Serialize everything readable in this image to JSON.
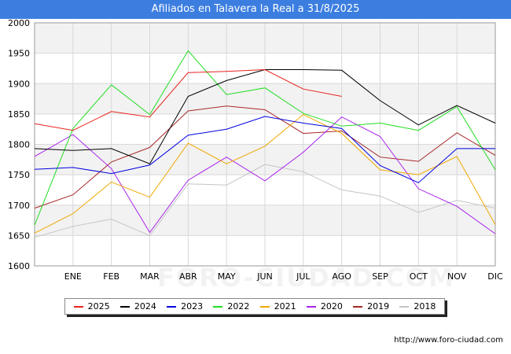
{
  "chart_data": {
    "type": "line",
    "title": "Afiliados en Talavera la Real a 31/8/2025",
    "categories": [
      "",
      "ENE",
      "FEB",
      "MAR",
      "ABR",
      "MAY",
      "JUN",
      "JUL",
      "AGO",
      "SEP",
      "OCT",
      "NOV",
      "DIC"
    ],
    "ylim": [
      1600,
      2000
    ],
    "yticks": [
      1600,
      1650,
      1700,
      1750,
      1800,
      1850,
      1900,
      1950,
      2000
    ],
    "grid": true,
    "legend_position": "bottom",
    "series": [
      {
        "name": "2025",
        "color": "#e8221c",
        "values": [
          1834,
          1823,
          1854,
          1845,
          1918,
          1920,
          1923,
          1891,
          1879,
          null,
          null,
          null,
          null
        ]
      },
      {
        "name": "2024",
        "color": "#000000",
        "values": [
          1793,
          1790,
          1793,
          1768,
          1879,
          1905,
          1923,
          1923,
          1922,
          1872,
          1832,
          1864,
          1835
        ]
      },
      {
        "name": "2023",
        "color": "#0000e0",
        "values": [
          1759,
          1762,
          1752,
          1766,
          1815,
          1825,
          1846,
          1835,
          1826,
          1765,
          1737,
          1793,
          1793
        ]
      },
      {
        "name": "2022",
        "color": "#22dd22",
        "values": [
          1667,
          1826,
          1898,
          1849,
          1954,
          1882,
          1893,
          1851,
          1830,
          1835,
          1823,
          1862,
          1758
        ]
      },
      {
        "name": "2021",
        "color": "#f0a800",
        "values": [
          1654,
          1686,
          1738,
          1713,
          1802,
          1768,
          1797,
          1849,
          1818,
          1758,
          1750,
          1780,
          1668
        ]
      },
      {
        "name": "2020",
        "color": "#aa22ee",
        "values": [
          1780,
          1816,
          1760,
          1655,
          1741,
          1779,
          1740,
          1787,
          1845,
          1813,
          1727,
          1698,
          1653
        ]
      },
      {
        "name": "2019",
        "color": "#a82828",
        "values": [
          1695,
          1717,
          1771,
          1795,
          1855,
          1863,
          1857,
          1818,
          1822,
          1779,
          1772,
          1819,
          1782
        ]
      },
      {
        "name": "2018",
        "color": "#c4c4c4",
        "values": [
          1647,
          1665,
          1677,
          1650,
          1735,
          1733,
          1767,
          1755,
          1725,
          1715,
          1688,
          1708,
          1695
        ]
      }
    ]
  },
  "footer": {
    "url": "http://www.foro-ciudad.com",
    "watermark": "FORO-CIUDAD.COM"
  }
}
